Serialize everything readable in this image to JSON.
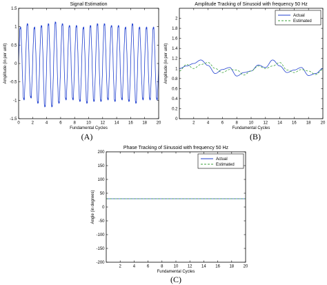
{
  "chart_data": [
    {
      "id": "A",
      "type": "line",
      "panel_label": "(A)",
      "title": "Signal Estimation",
      "xlabel": "Fundamental Cycles",
      "ylabel": "Amplitude (in per unit)",
      "xlim": [
        0,
        20
      ],
      "ylim": [
        -1.5,
        1.5
      ],
      "xticks": [
        0,
        2,
        4,
        6,
        8,
        10,
        12,
        14,
        16,
        18,
        20
      ],
      "yticks": [
        -1.5,
        -1,
        -0.5,
        0,
        0.5,
        1,
        1.5
      ],
      "grid": false,
      "legend": null,
      "series": [
        {
          "color": "#1f3fcf",
          "style": "solid",
          "peaks": [
            1.0,
            1.1,
            1.0,
            1.05,
            1.1,
            1.15,
            1.1,
            1.05,
            1.05,
            1.0,
            1.05,
            1.1,
            1.1,
            1.05,
            1.05,
            1.0,
            1.1,
            1.0,
            1.0,
            1.0
          ],
          "troughs": [
            -1.0,
            -0.95,
            -1.1,
            -1.2,
            -1.2,
            -1.1,
            -1.0,
            -1.0,
            -1.05,
            -1.1,
            -1.05,
            -1.05,
            -1.0,
            -1.05,
            -1.0,
            -1.05,
            -1.1,
            -1.0,
            -1.0,
            -1.0
          ]
        }
      ]
    },
    {
      "id": "B",
      "type": "line",
      "panel_label": "(B)",
      "title": "Amplitude Tracking of Sinusoid with frequency 50 Hz",
      "xlabel": "Fundamental Cycles",
      "ylabel": "Amplitude (in per unit)",
      "xlim": [
        0,
        20
      ],
      "ylim": [
        0,
        2.2
      ],
      "xticks": [
        2,
        4,
        6,
        8,
        10,
        12,
        14,
        16,
        18,
        20
      ],
      "yticks": [
        0,
        0.2,
        0.4,
        0.6,
        0.8,
        1,
        1.2,
        1.4,
        1.6,
        1.8,
        2
      ],
      "grid": false,
      "legend": "top-right",
      "series": [
        {
          "name": "Actual",
          "color": "#1f3fcf",
          "style": "solid",
          "x": [
            0,
            1,
            2,
            3,
            4,
            5,
            6,
            7,
            8,
            9,
            10,
            11,
            12,
            13,
            14,
            15,
            16,
            17,
            18,
            19,
            20
          ],
          "y": [
            1.0,
            1.05,
            1.1,
            1.17,
            1.06,
            0.9,
            0.98,
            1.02,
            0.85,
            0.92,
            0.95,
            1.07,
            1.02,
            1.17,
            1.05,
            0.92,
            0.97,
            1.02,
            0.86,
            0.9,
            1.0
          ]
        },
        {
          "name": "Estimated",
          "color": "#3aa23a",
          "style": "dashed",
          "x": [
            0,
            1,
            2,
            3,
            4,
            5,
            6,
            7,
            8,
            9,
            10,
            11,
            12,
            13,
            14,
            15,
            16,
            17,
            18,
            19,
            20
          ],
          "y": [
            0.95,
            1.08,
            1.0,
            1.08,
            1.12,
            1.0,
            0.92,
            0.98,
            0.97,
            0.87,
            0.95,
            1.05,
            1.0,
            1.05,
            1.12,
            0.97,
            0.92,
            0.98,
            0.95,
            0.88,
            0.98
          ]
        }
      ]
    },
    {
      "id": "C",
      "type": "line",
      "panel_label": "(C)",
      "title": "Phase Tracking of Sinusoid with frequency 50 Hz",
      "xlabel": "Fundamental Cycles",
      "ylabel": "Angle (in degrees)",
      "xlim": [
        0,
        20
      ],
      "ylim": [
        -200,
        200
      ],
      "xticks": [
        2,
        4,
        6,
        8,
        10,
        12,
        14,
        16,
        18,
        20
      ],
      "yticks": [
        -200,
        -150,
        -100,
        -50,
        0,
        50,
        100,
        150,
        200
      ],
      "grid": false,
      "legend": "top-right",
      "series": [
        {
          "name": "Actual",
          "color": "#1f3fcf",
          "style": "solid",
          "x": [
            0,
            20
          ],
          "y": [
            30,
            30
          ]
        },
        {
          "name": "Estimated",
          "color": "#3aa23a",
          "style": "dashed",
          "x": [
            0,
            20
          ],
          "y": [
            30,
            30
          ]
        }
      ]
    }
  ]
}
